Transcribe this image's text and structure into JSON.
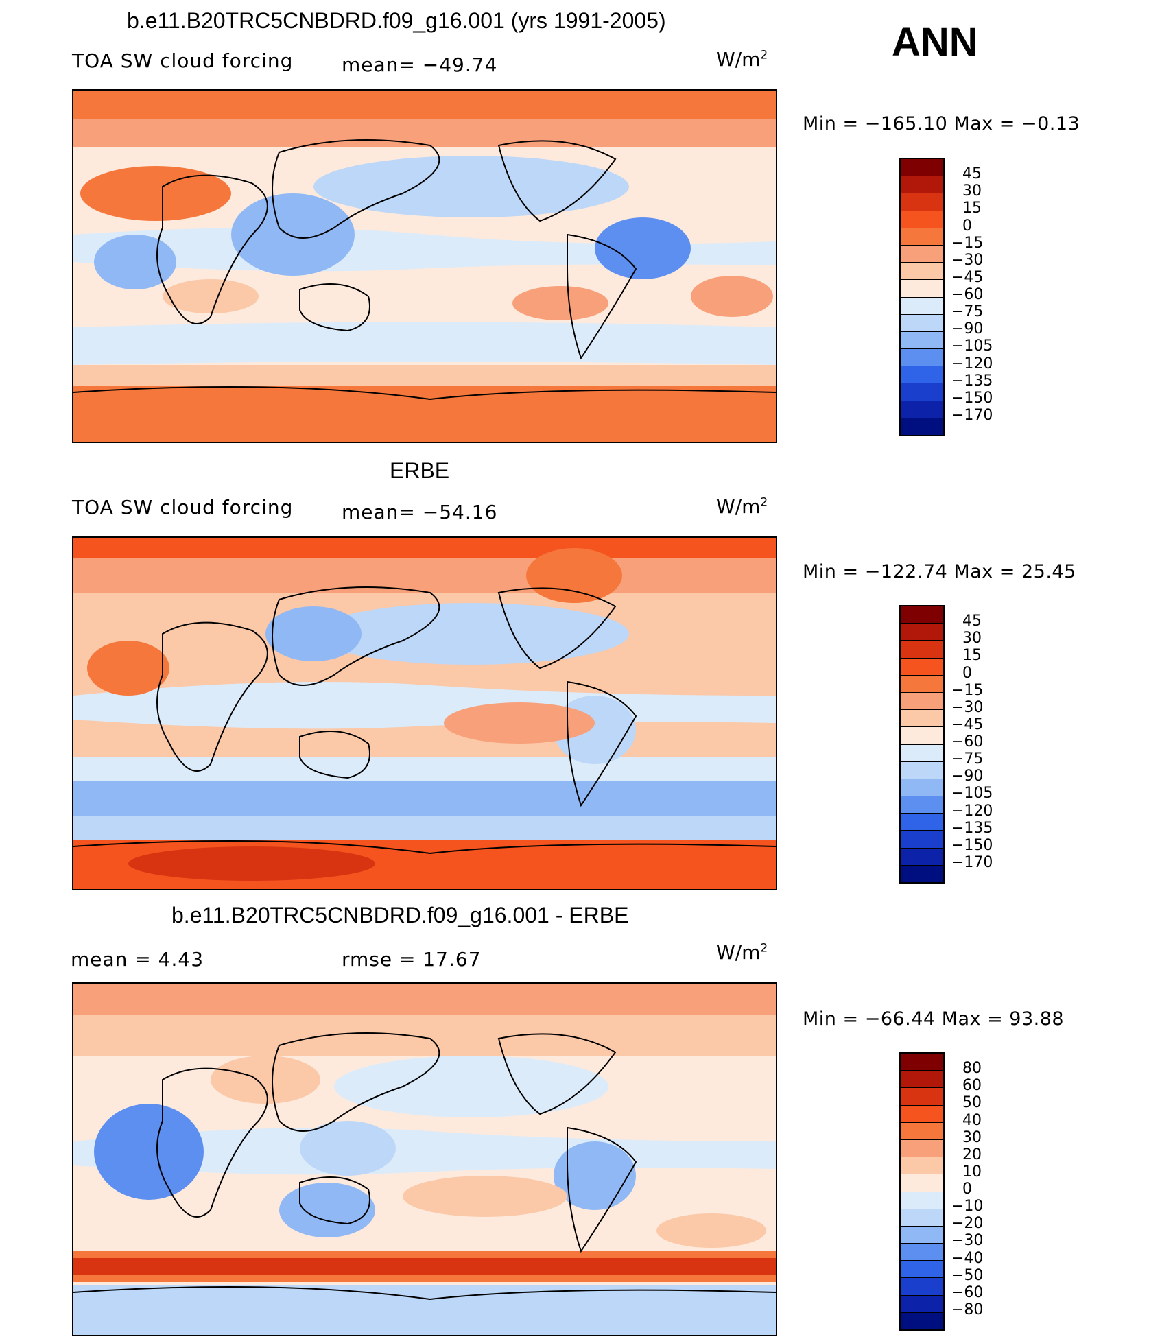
{
  "season": "ANN",
  "panels": [
    {
      "id": "model",
      "title": "b.e11.B20TRC5CNBDRD.f09_g16.001 (yrs 1991-2005)",
      "left_label": "TOA SW cloud forcing",
      "stat_label": "mean= −49.74",
      "units_base": "W/m",
      "units_sup": "2",
      "minmax": "Min  =  −165.10  Max  =    −0.13",
      "colorbar_levels": [
        "45",
        "30",
        "15",
        "0",
        "−15",
        "−30",
        "−45",
        "−60",
        "−75",
        "−90",
        "−105",
        "−120",
        "−135",
        "−150",
        "−170"
      ],
      "colorbar_colors": [
        "#7f0000",
        "#b2180a",
        "#d93412",
        "#f5541e",
        "#f5773c",
        "#f7a07a",
        "#fbc8a8",
        "#fdeadd",
        "#dcebf9",
        "#bcd7f7",
        "#8fb8f5",
        "#5c8ff0",
        "#2f63e8",
        "#1a3fcc",
        "#0c22a8",
        "#000f80"
      ]
    },
    {
      "id": "obs",
      "title": "ERBE",
      "left_label": "TOA SW cloud forcing",
      "stat_label": "mean= −54.16",
      "units_base": "W/m",
      "units_sup": "2",
      "minmax": "Min  =  −122.74  Max  =    25.45",
      "colorbar_levels": [
        "45",
        "30",
        "15",
        "0",
        "−15",
        "−30",
        "−45",
        "−60",
        "−75",
        "−90",
        "−105",
        "−120",
        "−135",
        "−150",
        "−170"
      ],
      "colorbar_colors": [
        "#7f0000",
        "#b2180a",
        "#d93412",
        "#f5541e",
        "#f5773c",
        "#f7a07a",
        "#fbc8a8",
        "#fdeadd",
        "#dcebf9",
        "#bcd7f7",
        "#8fb8f5",
        "#5c8ff0",
        "#2f63e8",
        "#1a3fcc",
        "#0c22a8",
        "#000f80"
      ]
    },
    {
      "id": "diff",
      "title": "b.e11.B20TRC5CNBDRD.f09_g16.001 - ERBE",
      "mean_label": "mean  =     4.43",
      "rmse_label": "rmse  =    17.67",
      "units_base": "W/m",
      "units_sup": "2",
      "minmax": "Min  =  −66.44  Max  =    93.88",
      "colorbar_levels": [
        "80",
        "60",
        "50",
        "40",
        "30",
        "20",
        "10",
        "0",
        "−10",
        "−20",
        "−30",
        "−40",
        "−50",
        "−60",
        "−80"
      ],
      "colorbar_colors": [
        "#7f0000",
        "#b2180a",
        "#d93412",
        "#f5541e",
        "#f5773c",
        "#f7a07a",
        "#fbc8a8",
        "#fdeadd",
        "#dcebf9",
        "#bcd7f7",
        "#8fb8f5",
        "#5c8ff0",
        "#2f63e8",
        "#1a3fcc",
        "#0c22a8",
        "#000f80"
      ]
    }
  ]
}
